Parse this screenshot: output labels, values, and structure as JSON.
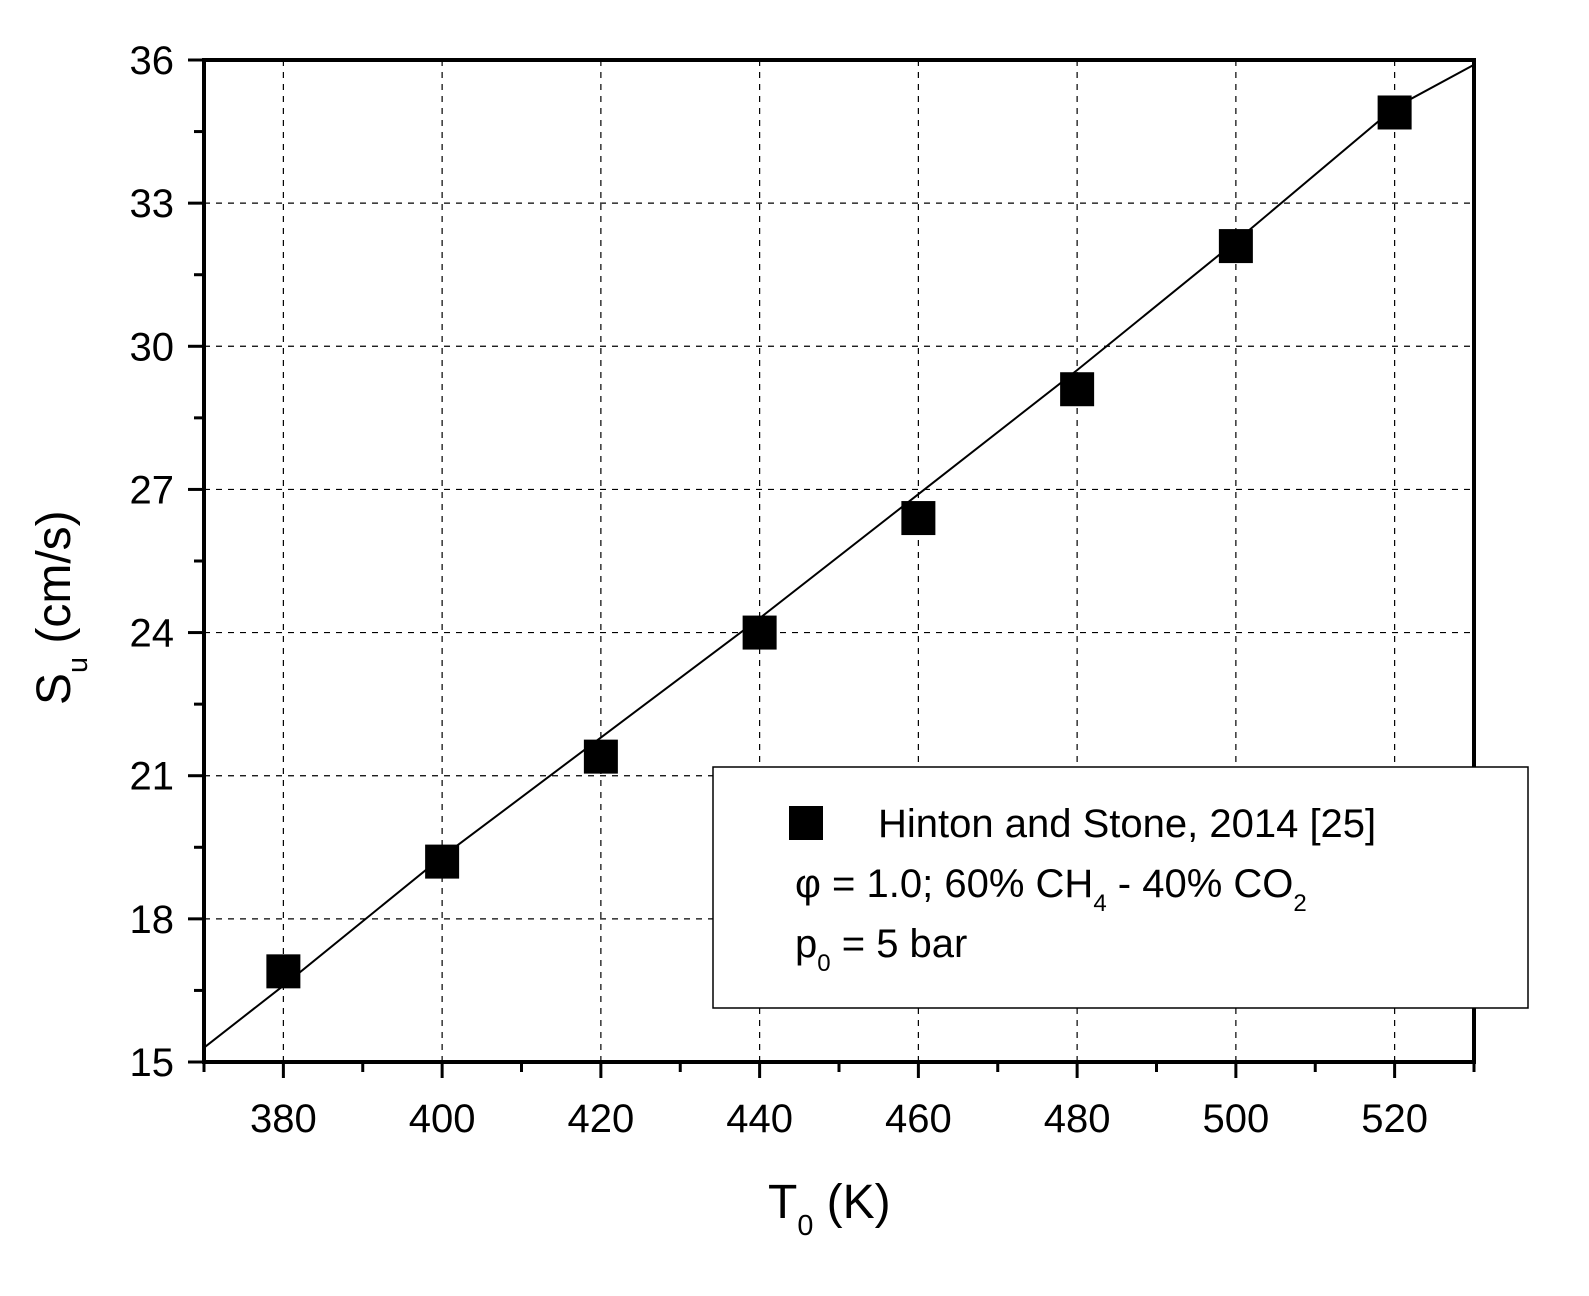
{
  "chart_data": {
    "type": "scatter",
    "x_label": [
      "T",
      "0",
      " (K)"
    ],
    "y_label": [
      "S",
      "u",
      " (cm/s)"
    ],
    "xlim": [
      370,
      530
    ],
    "xticks": [
      380,
      400,
      420,
      440,
      460,
      480,
      500,
      520
    ],
    "x_minor_ticks": [
      370,
      390,
      410,
      430,
      450,
      470,
      490,
      510,
      530
    ],
    "ylim": [
      15,
      36
    ],
    "yticks": [
      15,
      18,
      21,
      24,
      27,
      30,
      33,
      36
    ],
    "y_minor_ticks": [
      16.5,
      19.5,
      22.5,
      25.5,
      28.5,
      31.5,
      34.5
    ],
    "grid": true,
    "series": [
      {
        "name": "Hinton and Stone, 2014 [25]",
        "mode": "markers",
        "color": "#000000",
        "x": [
          380,
          400,
          420,
          440,
          460,
          480,
          500,
          520
        ],
        "values": [
          16.9,
          19.2,
          21.4,
          24.0,
          26.4,
          29.1,
          32.1,
          34.9
        ]
      },
      {
        "mode": "line",
        "color": "#000000",
        "x": [
          370,
          380,
          400,
          420,
          440,
          460,
          480,
          500,
          520,
          530
        ],
        "values": [
          15.3,
          16.6,
          19.3,
          21.8,
          24.3,
          26.9,
          29.5,
          32.2,
          35.0,
          35.9
        ]
      }
    ],
    "legend_notes": [
      [
        "φ = 1.0; 60% CH",
        "4",
        " - 40% CO",
        "2"
      ],
      [
        "p",
        "0",
        " = 5 bar"
      ]
    ]
  }
}
